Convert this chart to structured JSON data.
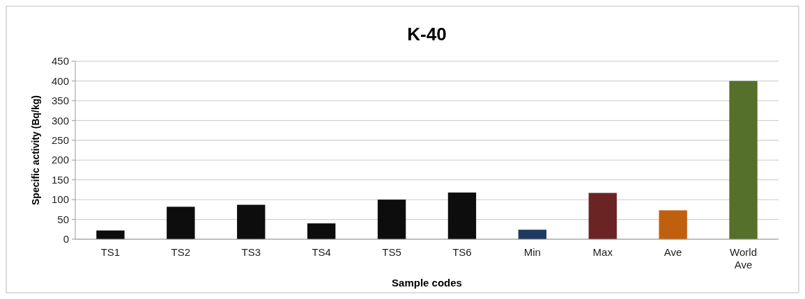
{
  "chart_data": {
    "type": "bar",
    "title": "K-40",
    "xlabel": "Sample codes",
    "ylabel": "Specific activity (Bq/kg)",
    "categories": [
      "TS1",
      "TS2",
      "TS3",
      "TS4",
      "TS5",
      "TS6",
      "Min",
      "Max",
      "Ave",
      "World Ave"
    ],
    "values": [
      22,
      82,
      87,
      40,
      100,
      118,
      24,
      117,
      73,
      400
    ],
    "colors": [
      "#0d0d0d",
      "#0d0d0d",
      "#0d0d0d",
      "#0d0d0d",
      "#0d0d0d",
      "#0d0d0d",
      "#1f3a5f",
      "#6b2424",
      "#c0600f",
      "#55702a"
    ],
    "ylim": [
      0,
      450
    ],
    "yticks": [
      0,
      50,
      100,
      150,
      200,
      250,
      300,
      350,
      400,
      450
    ],
    "grid": "y"
  }
}
